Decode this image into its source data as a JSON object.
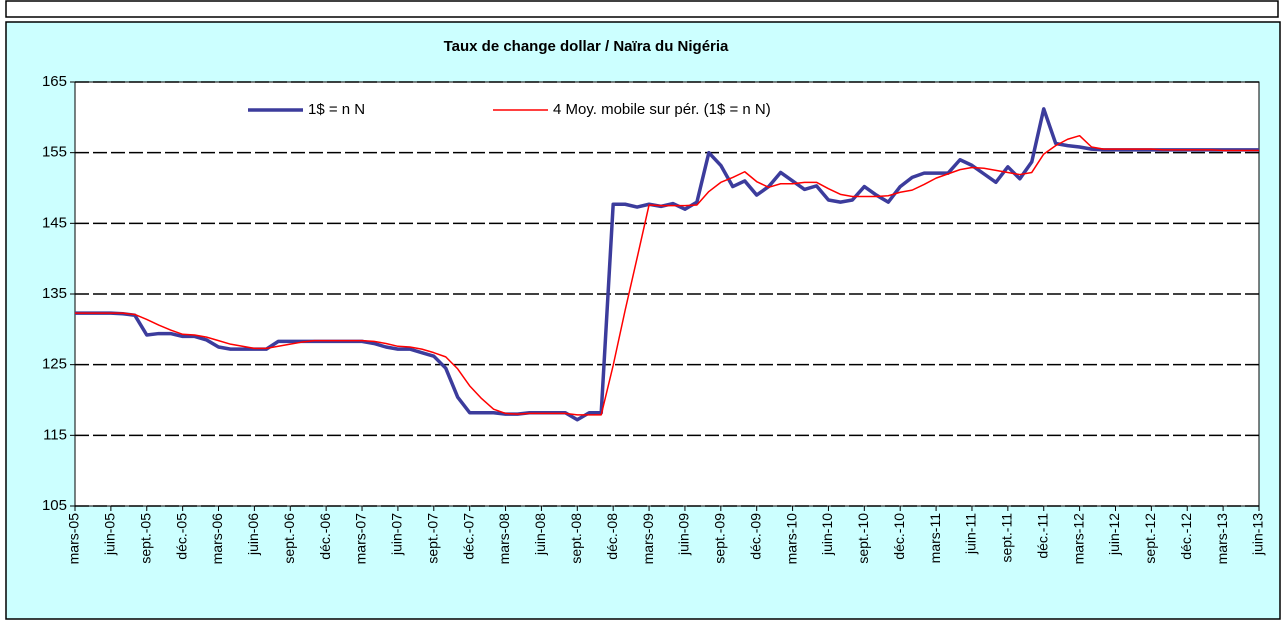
{
  "chart_data": {
    "type": "line",
    "title": "Taux de change dollar / Naïra du Nigéria",
    "categories": [
      "mars-05",
      null,
      null,
      "juin-05",
      null,
      null,
      "sept.-05",
      null,
      null,
      "déc.-05",
      null,
      null,
      "mars-06",
      null,
      null,
      "juin-06",
      null,
      null,
      "sept.-06",
      null,
      null,
      "déc.-06",
      null,
      null,
      "mars-07",
      null,
      null,
      "juin-07",
      null,
      null,
      "sept.-07",
      null,
      null,
      "déc.-07",
      null,
      null,
      "mars-08",
      null,
      null,
      "juin-08",
      null,
      null,
      "sept.-08",
      null,
      null,
      "déc.-08",
      null,
      null,
      "mars-09",
      null,
      null,
      "juin-09",
      null,
      null,
      "sept.-09",
      null,
      null,
      "déc.-09",
      null,
      null,
      "mars-10",
      null,
      null,
      "juin-10",
      null,
      null,
      "sept.-10",
      null,
      null,
      "déc.-10",
      null,
      null,
      "mars-11",
      null,
      null,
      "juin-11",
      null,
      null,
      "sept.-11",
      null,
      null,
      "déc.-11",
      null,
      null,
      "mars-12",
      null,
      null,
      "juin-12",
      null,
      null,
      "sept.-12",
      null,
      null,
      "déc.-12",
      null,
      null,
      "mars-13",
      null,
      null,
      "juin-13"
    ],
    "series": [
      {
        "name": "1$ = n N",
        "color": "#3c3c9c",
        "values": [
          132.3,
          132.3,
          132.3,
          132.3,
          132.2,
          132,
          129.2,
          129.4,
          129.4,
          129,
          129,
          128.5,
          127.5,
          127.2,
          127.2,
          127.2,
          127.2,
          128.3,
          128.3,
          128.3,
          128.3,
          128.3,
          128.3,
          128.3,
          128.3,
          128,
          127.5,
          127.2,
          127.2,
          126.7,
          126.2,
          124.5,
          120.4,
          118.2,
          118.2,
          118.2,
          118,
          118,
          118.2,
          118.2,
          118.2,
          118.2,
          117.2,
          118.2,
          118.2,
          147.7,
          147.7,
          147.3,
          147.7,
          147.4,
          147.8,
          147,
          148,
          155,
          153.2,
          150.2,
          151,
          149,
          150.2,
          152.2,
          151,
          149.8,
          150.3,
          148.3,
          148,
          148.3,
          150.2,
          149,
          148,
          150.2,
          151.5,
          152.1,
          152.1,
          152.1,
          154,
          153.2,
          152,
          150.8,
          153,
          151.3,
          153.7,
          161.2,
          156.3,
          156,
          155.8,
          155.5,
          155.4,
          155.4,
          155.4,
          155.4,
          155.4,
          155.4,
          155.4,
          155.4,
          155.4,
          155.4,
          155.4,
          155.4,
          155.4,
          155.4
        ]
      },
      {
        "name": "4 Moy. mobile sur pér. (1$ = n N)",
        "color": "#ff0000",
        "values": [
          132.3,
          132.3,
          132.3,
          132.3,
          132.3,
          132.1,
          131.4,
          130.6,
          129.9,
          129.3,
          129.2,
          128.9,
          128.4,
          127.9,
          127.6,
          127.3,
          127.3,
          127.6,
          127.9,
          128.2,
          128.4,
          128.4,
          128.4,
          128.4,
          128.4,
          128.3,
          128,
          127.6,
          127.5,
          127.2,
          126.7,
          126.1,
          124.4,
          122,
          120.2,
          118.7,
          118.1,
          118,
          118.1,
          118.1,
          118.1,
          118.1,
          117.9,
          117.9,
          117.9,
          124.9,
          132.7,
          140.1,
          147.6,
          147.5,
          147.5,
          147.5,
          147.6,
          149.5,
          150.8,
          151.5,
          152.3,
          150.9,
          150.1,
          150.6,
          150.6,
          150.8,
          150.8,
          149.9,
          149.1,
          148.8,
          148.8,
          148.8,
          148.9,
          149.4,
          149.7,
          150.5,
          151.4,
          152,
          152.6,
          152.9,
          152.8,
          152.5,
          152.2,
          151.9,
          152.2,
          154.8,
          156,
          156.9,
          157.4,
          155.8,
          155.5,
          155.5,
          155.5,
          155.5,
          155.5,
          155.4,
          155.4,
          155.4,
          155.4,
          155.4,
          155.3,
          155.3,
          155.3,
          155.3
        ]
      }
    ],
    "ylim": [
      105,
      165
    ],
    "yticks": [
      105,
      115,
      125,
      135,
      145,
      155,
      165
    ],
    "grid": true,
    "legend": "top"
  }
}
